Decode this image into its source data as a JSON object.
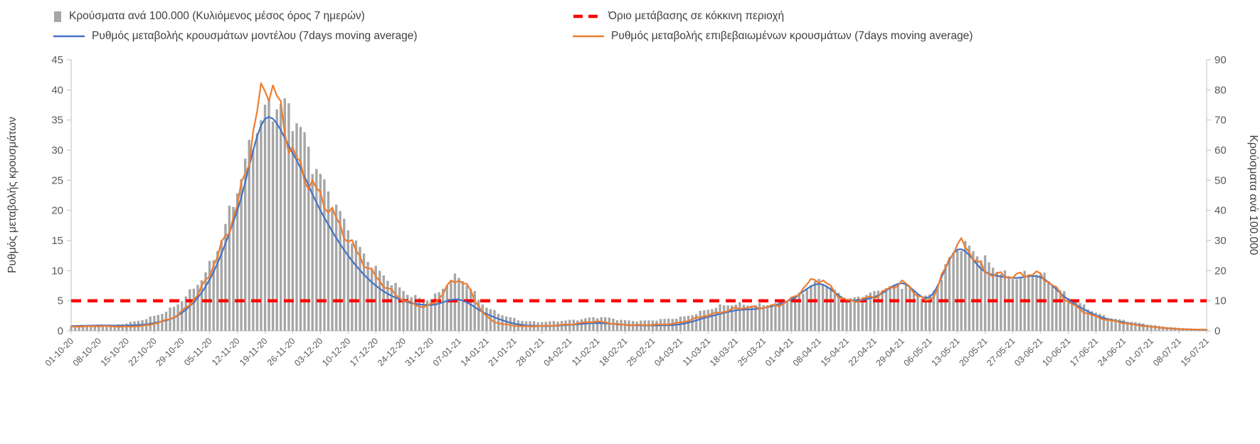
{
  "legend": {
    "bars": "Κρούσματα ανά 100.000 (Κυλιόμενος μέσος όρος 7 ημερών)",
    "threshold": "Όριο μετάβασης σε κόκκινη περιοχή",
    "model": "Ρυθμός μεταβολής κρουσμάτων μοντέλου (7days moving average)",
    "confirmed": "Ρυθμός μεταβολής επιβεβαιωμένων κρουσμάτων (7days moving average)"
  },
  "axes": {
    "left_title": "Ρυθμός μεταβολής κρουσμάτων",
    "right_title": "Κρούσματα ανά 100.000",
    "left_ticks": [
      0,
      5,
      10,
      15,
      20,
      25,
      30,
      35,
      40,
      45
    ],
    "right_ticks": [
      0,
      10,
      20,
      30,
      40,
      50,
      60,
      70,
      80,
      90
    ]
  },
  "colors": {
    "bar": "#a6a6a6",
    "model": "#4472c4",
    "confirmed": "#ed7d31",
    "threshold": "#ff0000",
    "axis_line": "#bfbfbf",
    "text": "#595959"
  },
  "chart_data": {
    "type": "combo (bar + line + threshold line)",
    "note": "Daily data estimated from pixels; weekly_values are anchor estimates at each listed date, daily points interpolated",
    "categories": [
      "01-10-20",
      "08-10-20",
      "15-10-20",
      "22-10-20",
      "29-10-20",
      "05-11-20",
      "12-11-20",
      "19-11-20",
      "26-11-20",
      "03-12-20",
      "10-12-20",
      "17-12-20",
      "24-12-20",
      "31-12-20",
      "07-01-21",
      "14-01-21",
      "21-01-21",
      "28-01-21",
      "04-02-21",
      "11-02-21",
      "18-02-21",
      "25-02-21",
      "04-03-21",
      "11-03-21",
      "18-03-21",
      "25-03-21",
      "01-04-21",
      "08-04-21",
      "15-04-21",
      "22-04-21",
      "29-04-21",
      "06-05-21",
      "13-05-21",
      "20-05-21",
      "27-05-21",
      "03-06-21",
      "10-06-21",
      "17-06-21",
      "24-06-21",
      "01-07-21",
      "08-07-21",
      "15-07-21"
    ],
    "left_ylim": [
      0,
      45
    ],
    "right_ylim": [
      0,
      90
    ],
    "legend_position": "top",
    "grid": false,
    "series": [
      {
        "name": "Κρούσματα ανά 100.000 (Κυλιόμενος μέσος όρος 7 ημερών)",
        "type": "bar",
        "axis": "right",
        "color": "#a6a6a6",
        "weekly_values": [
          1.5,
          1.8,
          2.5,
          5,
          10,
          22,
          46,
          74,
          70,
          52,
          33,
          21,
          13,
          11,
          17.5,
          8,
          4,
          3,
          3.5,
          4.5,
          3.5,
          3.5,
          4.5,
          7,
          9,
          8.5,
          10.5,
          16,
          11,
          12.5,
          15.5,
          11.5,
          28,
          23,
          18,
          18.5,
          11.5,
          6,
          3.5,
          2,
          1,
          0.6
        ]
      },
      {
        "name": "Ρυθμός μεταβολής κρουσμάτων μοντέλου (7days moving average)",
        "type": "line",
        "axis": "left",
        "color": "#4472c4",
        "weekly_values": [
          0.8,
          0.9,
          0.9,
          1.3,
          3,
          8.5,
          20,
          35.2,
          29.5,
          20,
          12.5,
          7.5,
          5,
          4.3,
          5.2,
          2.8,
          1.2,
          0.8,
          1,
          1.3,
          1,
          0.9,
          1.1,
          2.3,
          3.4,
          3.8,
          5.2,
          7.8,
          5.2,
          5.6,
          7.9,
          5.6,
          13.5,
          9.8,
          8.8,
          8.9,
          5.2,
          2.6,
          1.4,
          0.7,
          0.3,
          0.2
        ]
      },
      {
        "name": "Ρυθμός μεταβολής επιβεβαιωμένων κρουσμάτων (7days moving average)",
        "type": "line",
        "axis": "left",
        "color": "#ed7d31",
        "weekly_values": [
          0.7,
          0.8,
          0.7,
          1.2,
          3.2,
          9.5,
          21,
          40,
          30,
          22,
          15.5,
          8.8,
          5.3,
          4.2,
          8.7,
          2.3,
          0.9,
          0.8,
          1.1,
          1.5,
          1,
          1,
          1.4,
          2.6,
          3.7,
          3.9,
          5.2,
          8.6,
          5,
          5.8,
          7.8,
          5.3,
          14,
          10.2,
          8.9,
          9.4,
          4.8,
          2.4,
          1.3,
          0.7,
          0.3,
          0.2
        ]
      },
      {
        "name": "Όριο μετάβασης σε κόκκινη περιοχή",
        "type": "threshold-line",
        "axis": "left",
        "color": "#ff0000",
        "value": 5
      }
    ]
  }
}
